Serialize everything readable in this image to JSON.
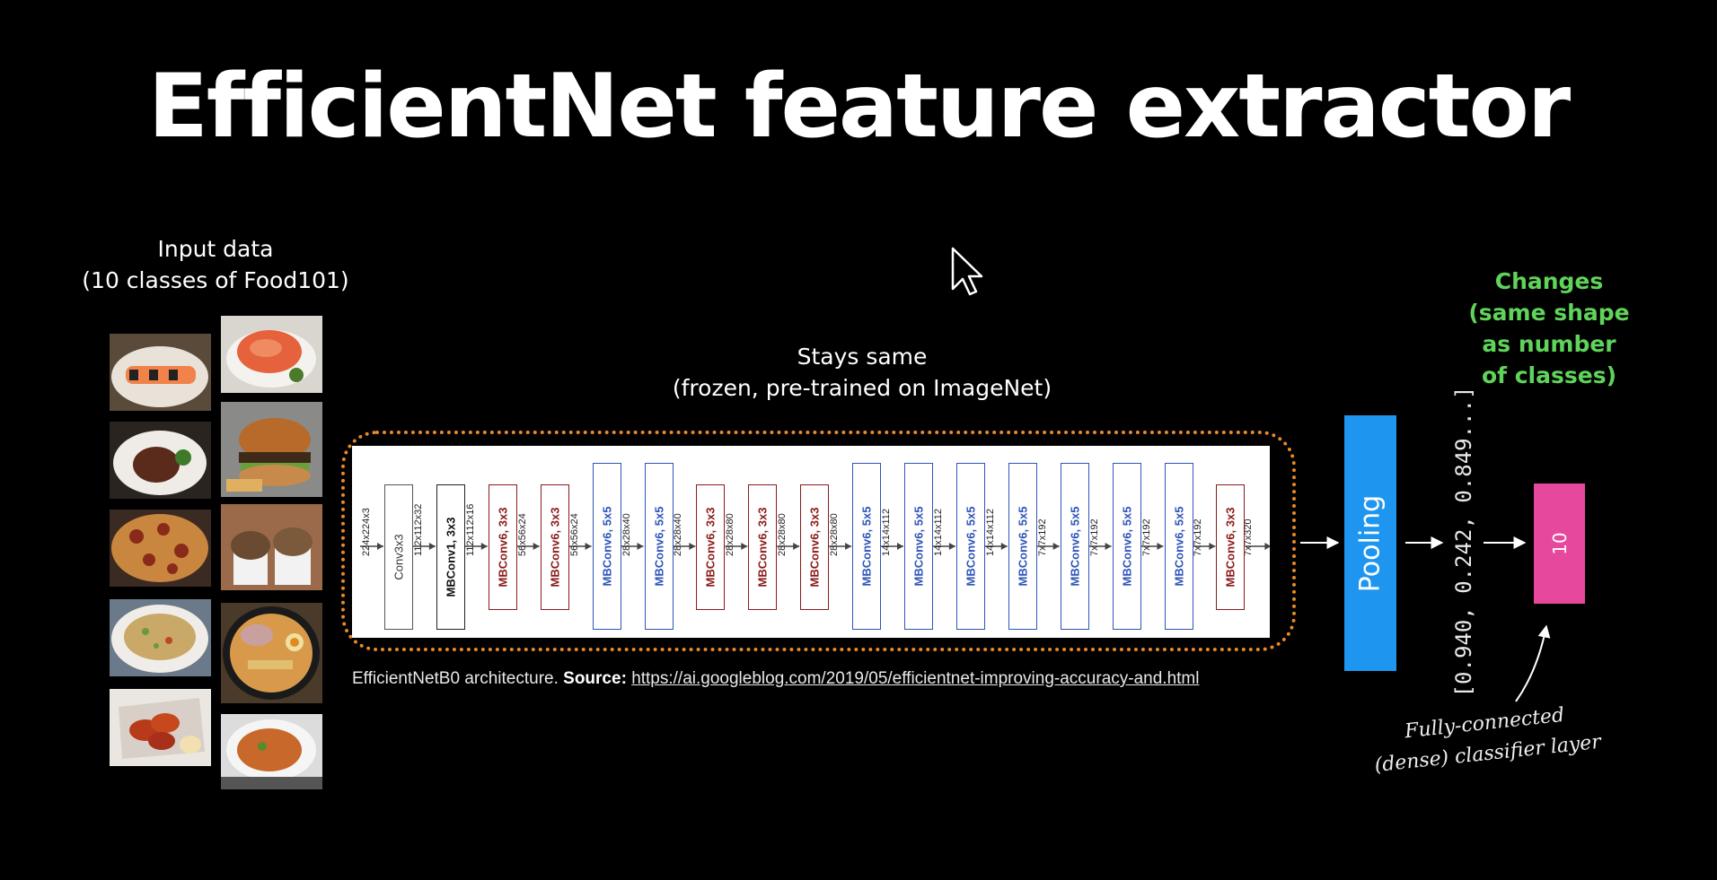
{
  "title": "EfficientNet feature extractor",
  "input_label": {
    "line1": "Input data",
    "line2": "(10 classes of Food101)"
  },
  "stays_label": {
    "line1": "Stays same",
    "line2": "(frozen, pre-trained on ImageNet)"
  },
  "changes_label": {
    "line1": "Changes",
    "line2": "(same shape",
    "line3": "as number",
    "line4": "of classes)"
  },
  "architecture": {
    "shapes": [
      "224x224x3",
      "112x112x32",
      "112x112x16",
      "56x56x24",
      "56x56x24",
      "28x28x40",
      "28x28x40",
      "28x28x80",
      "28x28x80",
      "28x28x80",
      "14x14x112",
      "14x14x112",
      "14x14x112",
      "7x7x192",
      "7x7x192",
      "7x7x192",
      "7x7x192",
      "7x7x320"
    ],
    "blocks": [
      "Conv3x3",
      "MBConv1, 3x3",
      "MBConv6, 3x3",
      "MBConv6, 3x3",
      "MBConv6, 5x5",
      "MBConv6, 5x5",
      "MBConv6, 3x3",
      "MBConv6, 3x3",
      "MBConv6, 3x3",
      "MBConv6, 5x5",
      "MBConv6, 5x5",
      "MBConv6, 5x5",
      "MBConv6, 5x5",
      "MBConv6, 5x5",
      "MBConv6, 5x5",
      "MBConv6, 5x5",
      "MBConv6, 3x3"
    ],
    "block_colors": {
      "conv": "#555555",
      "mbconv1": "#222222",
      "mbconv6_3x3": "#8b1a1a",
      "mbconv6_5x5": "#2f55b8"
    }
  },
  "source": {
    "prefix": "EfficientNetB0 architecture.",
    "label": "Source:",
    "url": "https://ai.googleblog.com/2019/05/efficientnet-improving-accuracy-and.html"
  },
  "pooling_label": "Pooling",
  "feature_vector": "[0.940, 0.242, 0.849...]",
  "output_units": "10",
  "classifier_label": {
    "line1": "Fully-connected",
    "line2": "(dense) classifier layer"
  },
  "colors": {
    "background": "#000000",
    "frame": "#e8892b",
    "pooling": "#1e96f0",
    "dense": "#e5489c",
    "changes": "#5fd35a"
  },
  "food_images": [
    "sushi",
    "salmon",
    "steak",
    "hamburger",
    "pizza",
    "ice-cream",
    "fried-rice",
    "ramen",
    "chicken-wings",
    "curry"
  ]
}
